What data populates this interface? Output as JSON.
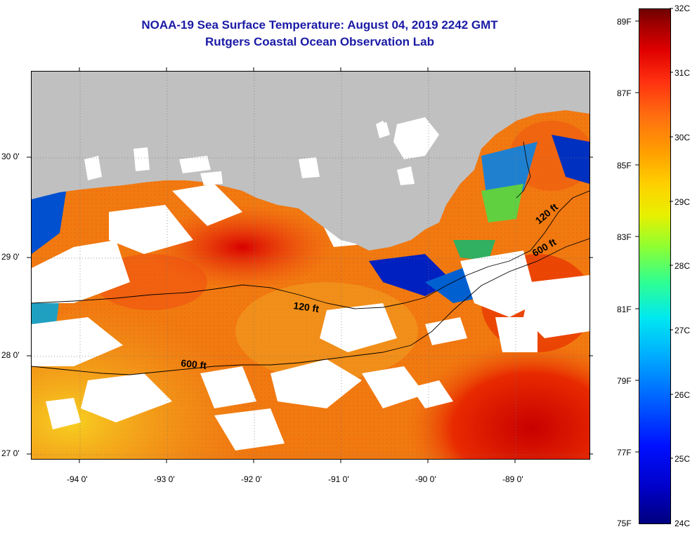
{
  "title": {
    "line1": "NOAA-19 Sea Surface Temperature:  August 04, 2019 2242 GMT",
    "line2": "Rutgers Coastal Ocean Observation Lab"
  },
  "map": {
    "x_axis_labels": [
      "-94 0'",
      "-93 0'",
      "-92 0'",
      "-91 0'",
      "-90 0'",
      "-89 0'"
    ],
    "y_axis_labels": [
      "30 0'",
      "29 0'",
      "28 0'",
      "27 0'"
    ],
    "contour_labels": {
      "shelf_120_center": "120 ft",
      "shelf_600_center": "600 ft",
      "shelf_120_east": "120 ft",
      "shelf_600_east": "600 ft"
    },
    "colors": {
      "land": "#c0c0c0",
      "cloud": "#ffffff",
      "warm_water": "#f07a10",
      "hot_water": "#e01a00",
      "cool_water": "#f0c020",
      "cold_water": "#0000b0"
    }
  },
  "colorbar": {
    "fahrenheit_labels": [
      "89F",
      "87F",
      "85F",
      "83F",
      "81F",
      "79F",
      "77F",
      "75F"
    ],
    "celsius_labels": [
      "32C",
      "31C",
      "30C",
      "29C",
      "28C",
      "27C",
      "26C",
      "25C",
      "24C"
    ]
  }
}
